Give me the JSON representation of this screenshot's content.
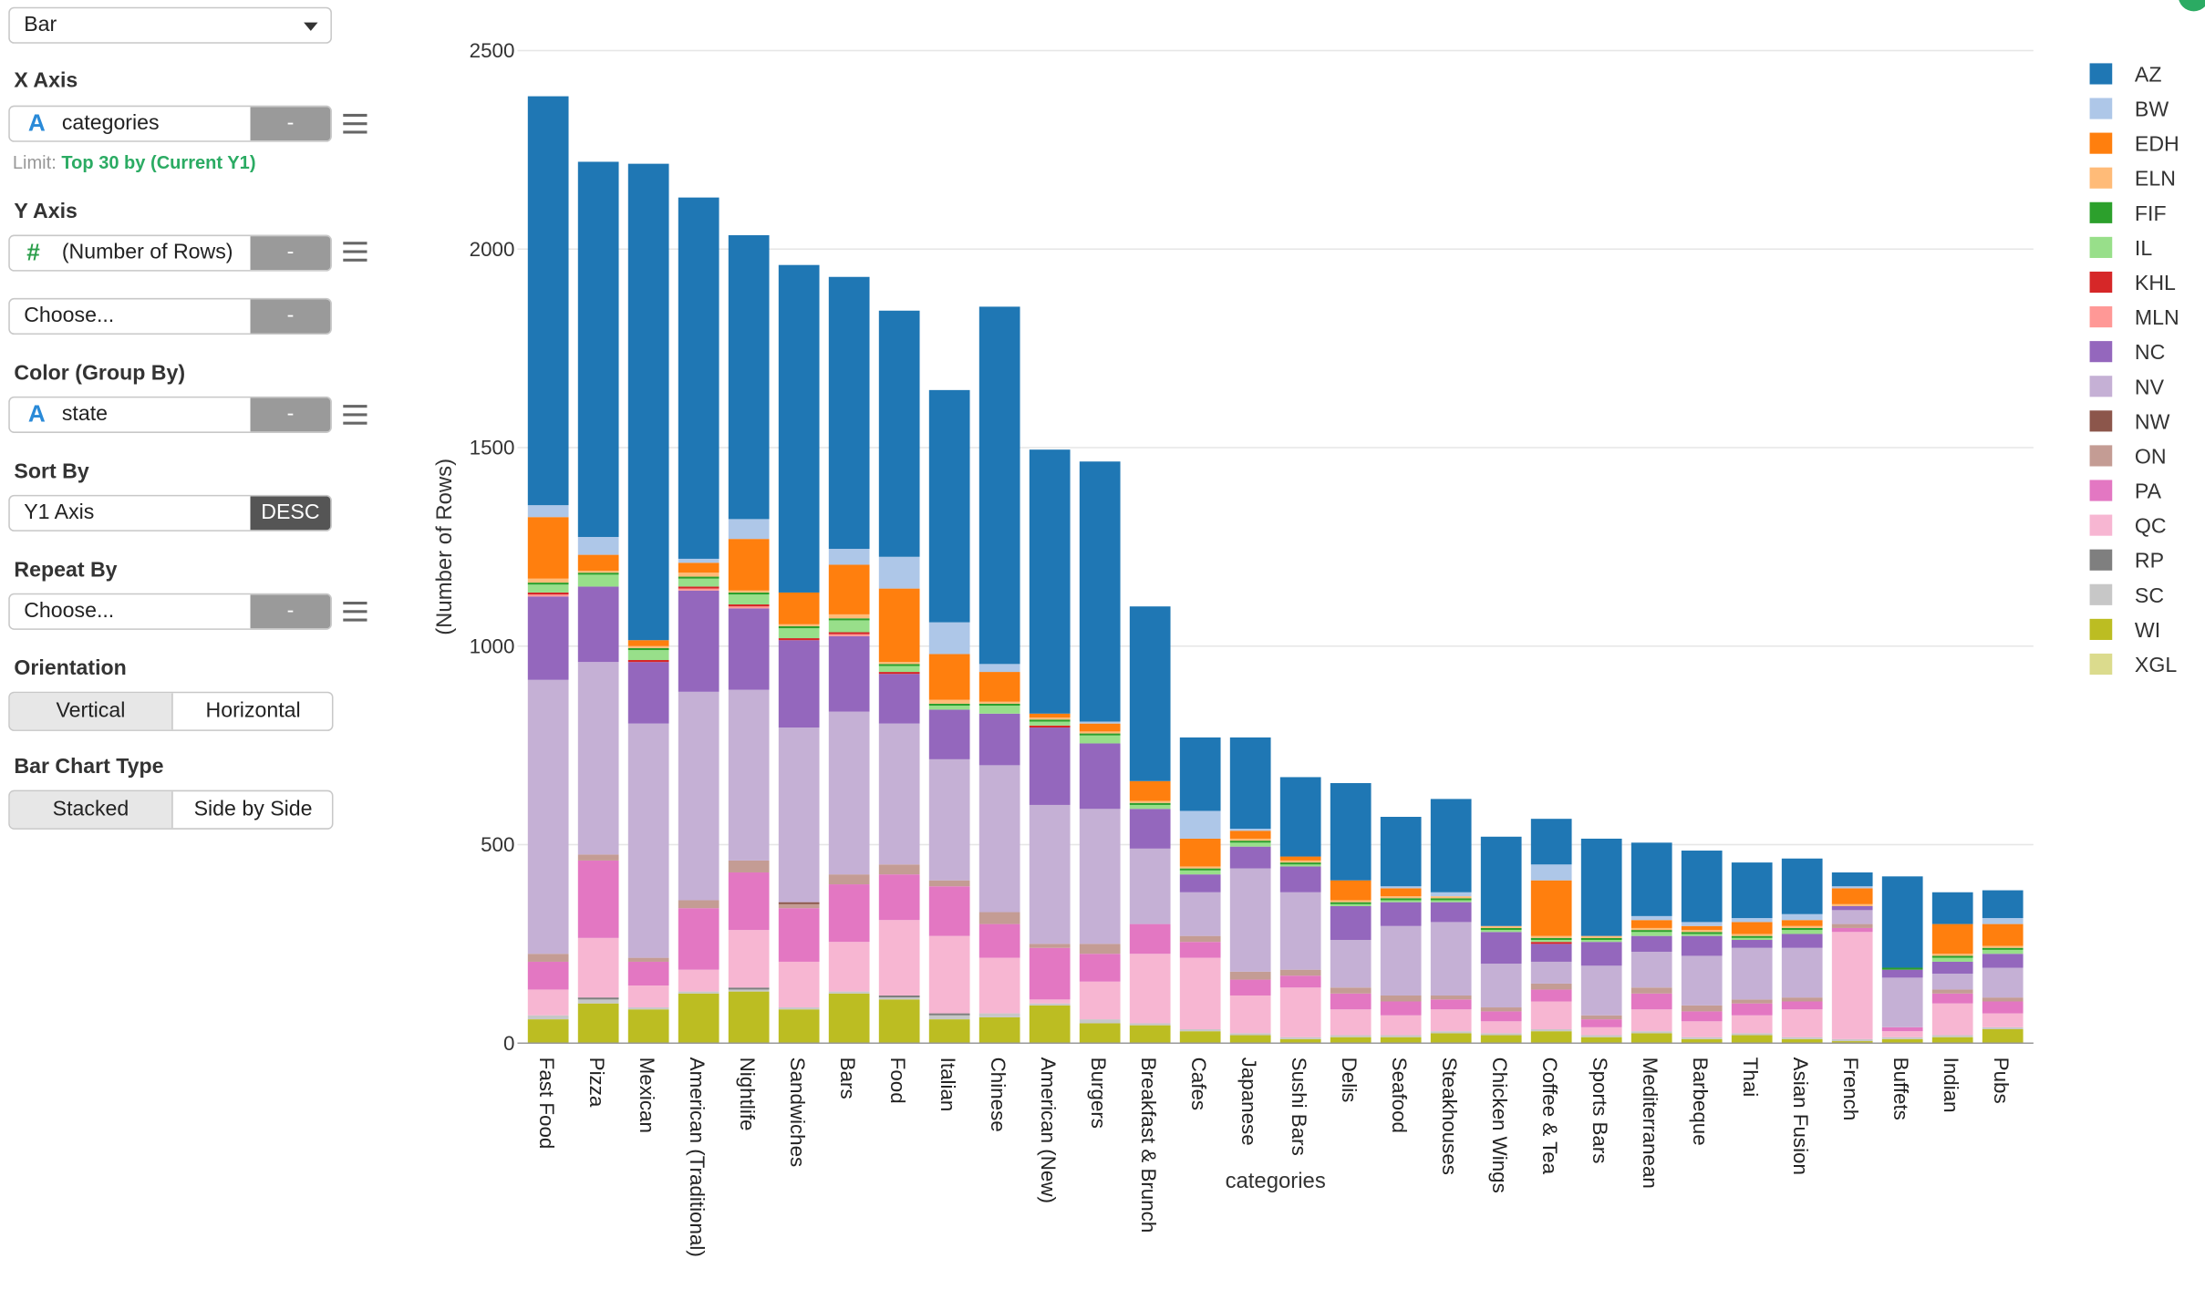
{
  "controls": {
    "chart_type": "Bar",
    "x_axis": {
      "title": "X Axis",
      "icon": "A",
      "field": "categories",
      "minus": "-",
      "limit_prefix": "Limit:",
      "limit_value": "Top 30 by (Current Y1)"
    },
    "y_axis": {
      "title": "Y Axis",
      "icon": "#",
      "field": "(Number of Rows)",
      "minus": "-",
      "choose": "Choose...",
      "minus2": "-"
    },
    "color_group": {
      "title": "Color (Group By)",
      "icon": "A",
      "field": "state",
      "minus": "-"
    },
    "sort_by": {
      "title": "Sort By",
      "field": "Y1 Axis",
      "order": "DESC"
    },
    "repeat_by": {
      "title": "Repeat By",
      "choose": "Choose...",
      "minus": "-"
    },
    "orientation": {
      "title": "Orientation",
      "options": [
        "Vertical",
        "Horizontal"
      ],
      "selected": "Vertical"
    },
    "bar_chart_type": {
      "title": "Bar Chart Type",
      "options": [
        "Stacked",
        "Side by Side"
      ],
      "selected": "Stacked"
    }
  },
  "chart_data": {
    "type": "bar",
    "stacked": true,
    "xlabel": "categories",
    "ylabel": "(Number of Rows)",
    "ylim": [
      0,
      2500
    ],
    "yticks": [
      0,
      500,
      1000,
      1500,
      2000,
      2500
    ],
    "grid": true,
    "legend_position": "right",
    "categories": [
      "Fast Food",
      "Pizza",
      "Mexican",
      "American (Traditional)",
      "Nightlife",
      "Sandwiches",
      "Bars",
      "Food",
      "Italian",
      "Chinese",
      "American (New)",
      "Burgers",
      "Breakfast & Brunch",
      "Cafes",
      "Japanese",
      "Sushi Bars",
      "Delis",
      "Seafood",
      "Steakhouses",
      "Chicken Wings",
      "Coffee & Tea",
      "Sports Bars",
      "Mediterranean",
      "Barbeque",
      "Thai",
      "Asian Fusion",
      "French",
      "Buffets",
      "Indian",
      "Pubs"
    ],
    "series": [
      {
        "name": "XGL",
        "color": "#dbdb8d",
        "values": [
          0,
          0,
          0,
          0,
          0,
          0,
          0,
          0,
          0,
          0,
          0,
          0,
          0,
          0,
          0,
          0,
          0,
          0,
          0,
          0,
          0,
          0,
          0,
          0,
          0,
          0,
          0,
          0,
          0,
          0
        ]
      },
      {
        "name": "WI",
        "color": "#bcbd22",
        "values": [
          60,
          100,
          85,
          125,
          130,
          85,
          125,
          110,
          60,
          65,
          95,
          50,
          45,
          30,
          20,
          10,
          15,
          15,
          25,
          20,
          30,
          15,
          25,
          10,
          20,
          10,
          5,
          10,
          15,
          35
        ]
      },
      {
        "name": "SC",
        "color": "#c7c7c7",
        "values": [
          10,
          10,
          5,
          5,
          5,
          5,
          5,
          5,
          10,
          10,
          5,
          10,
          5,
          5,
          5,
          5,
          5,
          5,
          5,
          5,
          5,
          5,
          5,
          5,
          5,
          5,
          5,
          5,
          5,
          5
        ]
      },
      {
        "name": "RP",
        "color": "#7f7f7f",
        "values": [
          0,
          5,
          0,
          0,
          5,
          0,
          0,
          5,
          5,
          0,
          0,
          0,
          0,
          0,
          0,
          0,
          0,
          0,
          0,
          0,
          0,
          0,
          0,
          0,
          0,
          0,
          0,
          0,
          0,
          0
        ]
      },
      {
        "name": "QC",
        "color": "#f7b6d2",
        "values": [
          65,
          150,
          55,
          55,
          145,
          115,
          125,
          190,
          195,
          140,
          10,
          95,
          175,
          180,
          95,
          125,
          65,
          50,
          55,
          30,
          70,
          20,
          55,
          40,
          45,
          70,
          270,
          15,
          80,
          35
        ]
      },
      {
        "name": "PA",
        "color": "#e377c2",
        "values": [
          70,
          195,
          60,
          155,
          145,
          135,
          145,
          115,
          125,
          85,
          130,
          70,
          75,
          40,
          40,
          30,
          40,
          35,
          25,
          25,
          30,
          20,
          40,
          25,
          30,
          20,
          10,
          10,
          25,
          30
        ]
      },
      {
        "name": "ON",
        "color": "#c49c94",
        "values": [
          20,
          15,
          10,
          20,
          30,
          10,
          25,
          25,
          15,
          30,
          10,
          25,
          0,
          15,
          20,
          15,
          15,
          15,
          10,
          10,
          15,
          10,
          15,
          15,
          10,
          10,
          10,
          0,
          10,
          10
        ]
      },
      {
        "name": "NW",
        "color": "#8c564b",
        "values": [
          0,
          0,
          0,
          0,
          0,
          5,
          0,
          0,
          0,
          0,
          0,
          0,
          0,
          0,
          0,
          0,
          0,
          0,
          0,
          0,
          0,
          0,
          0,
          0,
          0,
          0,
          0,
          0,
          0,
          0
        ]
      },
      {
        "name": "NV",
        "color": "#c5b0d5",
        "values": [
          690,
          485,
          590,
          525,
          430,
          440,
          410,
          355,
          305,
          370,
          350,
          340,
          190,
          110,
          260,
          195,
          120,
          175,
          185,
          110,
          55,
          125,
          90,
          125,
          130,
          125,
          35,
          125,
          40,
          75
        ]
      },
      {
        "name": "NC",
        "color": "#9467bd",
        "values": [
          210,
          190,
          155,
          255,
          205,
          220,
          190,
          125,
          125,
          130,
          195,
          165,
          100,
          45,
          55,
          65,
          85,
          60,
          50,
          80,
          45,
          60,
          40,
          50,
          20,
          35,
          10,
          20,
          30,
          35
        ]
      },
      {
        "name": "MLN",
        "color": "#ff9896",
        "values": [
          5,
          0,
          0,
          5,
          5,
          0,
          5,
          0,
          0,
          0,
          0,
          0,
          0,
          0,
          0,
          0,
          0,
          0,
          0,
          0,
          0,
          0,
          0,
          0,
          0,
          0,
          0,
          0,
          0,
          0
        ]
      },
      {
        "name": "KHL",
        "color": "#d62728",
        "values": [
          5,
          0,
          5,
          5,
          5,
          5,
          5,
          5,
          0,
          0,
          5,
          0,
          0,
          0,
          0,
          0,
          0,
          0,
          0,
          0,
          5,
          0,
          0,
          0,
          0,
          0,
          0,
          0,
          0,
          0
        ]
      },
      {
        "name": "IL",
        "color": "#98df8a",
        "values": [
          20,
          30,
          25,
          20,
          25,
          25,
          30,
          15,
          10,
          20,
          10,
          20,
          10,
          10,
          10,
          5,
          5,
          5,
          5,
          5,
          5,
          5,
          10,
          5,
          5,
          10,
          0,
          0,
          10,
          10
        ]
      },
      {
        "name": "FIF",
        "color": "#2ca02c",
        "values": [
          5,
          5,
          5,
          5,
          5,
          5,
          5,
          5,
          5,
          5,
          5,
          5,
          5,
          5,
          5,
          5,
          5,
          5,
          5,
          5,
          5,
          5,
          5,
          5,
          5,
          5,
          0,
          5,
          5,
          5
        ]
      },
      {
        "name": "ELN",
        "color": "#ffbb78",
        "values": [
          10,
          5,
          5,
          10,
          5,
          5,
          10,
          5,
          10,
          5,
          5,
          5,
          5,
          5,
          5,
          5,
          5,
          5,
          5,
          5,
          5,
          5,
          5,
          5,
          5,
          5,
          5,
          0,
          5,
          5
        ]
      },
      {
        "name": "EDH",
        "color": "#ff7f0e",
        "values": [
          155,
          40,
          15,
          25,
          130,
          80,
          125,
          185,
          115,
          75,
          10,
          20,
          50,
          70,
          20,
          10,
          50,
          20,
          0,
          0,
          140,
          0,
          20,
          10,
          30,
          15,
          40,
          0,
          75,
          55
        ]
      },
      {
        "name": "BW",
        "color": "#aec7e8",
        "values": [
          30,
          45,
          0,
          10,
          50,
          0,
          40,
          80,
          80,
          20,
          0,
          5,
          0,
          70,
          5,
          0,
          0,
          5,
          10,
          0,
          40,
          0,
          10,
          10,
          10,
          15,
          5,
          0,
          0,
          15
        ]
      },
      {
        "name": "AZ",
        "color": "#1f77b4",
        "values": [
          1030,
          945,
          1200,
          910,
          715,
          825,
          685,
          620,
          585,
          900,
          665,
          655,
          440,
          185,
          230,
          200,
          245,
          175,
          235,
          225,
          115,
          245,
          185,
          180,
          140,
          140,
          35,
          230,
          80,
          70
        ]
      }
    ],
    "legend": [
      "AZ",
      "BW",
      "EDH",
      "ELN",
      "FIF",
      "IL",
      "KHL",
      "MLN",
      "NC",
      "NV",
      "NW",
      "ON",
      "PA",
      "QC",
      "RP",
      "SC",
      "WI",
      "XGL"
    ],
    "legend_colors": [
      "#1f77b4",
      "#aec7e8",
      "#ff7f0e",
      "#ffbb78",
      "#2ca02c",
      "#98df8a",
      "#d62728",
      "#ff9896",
      "#9467bd",
      "#c5b0d5",
      "#8c564b",
      "#c49c94",
      "#e377c2",
      "#f7b6d2",
      "#7f7f7f",
      "#c7c7c7",
      "#bcbd22",
      "#dbdb8d"
    ]
  }
}
